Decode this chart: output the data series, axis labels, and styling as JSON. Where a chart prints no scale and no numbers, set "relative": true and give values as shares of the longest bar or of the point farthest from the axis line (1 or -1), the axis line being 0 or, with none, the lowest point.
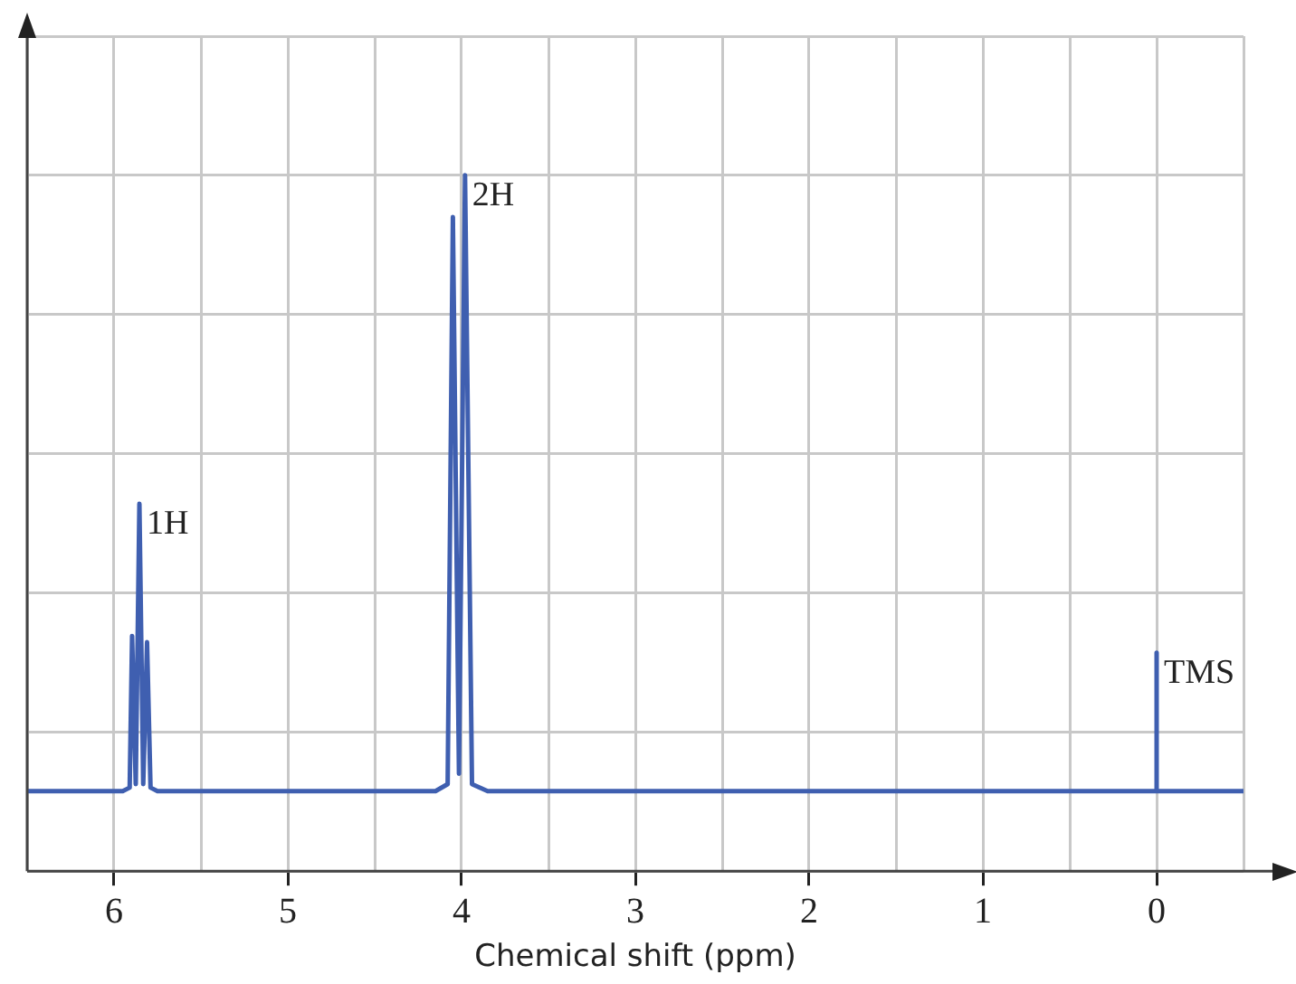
{
  "chart_data": {
    "type": "line",
    "xlabel": "Chemical shift (ppm)",
    "relative": true,
    "xlim": [
      6.5,
      -0.5
    ],
    "xticks": [
      {
        "value": 6.5,
        "label": null
      },
      6,
      {
        "value": 5.5,
        "label": null
      },
      5,
      {
        "value": 4.5,
        "label": null
      },
      4,
      {
        "value": 3.5,
        "label": null
      },
      3,
      {
        "value": 2.5,
        "label": null
      },
      2,
      {
        "value": 1.5,
        "label": null
      },
      1,
      {
        "value": 0.5,
        "label": null
      },
      0,
      {
        "value": -0.5,
        "label": null
      }
    ],
    "series": [
      {
        "color": "#3f5fb0",
        "x": [
          6.5,
          5.95,
          5.91,
          5.896,
          5.875,
          5.854,
          5.832,
          5.81,
          5.79,
          5.75,
          4.15,
          4.08,
          4.05,
          4.015,
          3.98,
          3.94,
          3.85,
          0.01,
          0,
          0,
          0,
          -0.5
        ],
        "values": [
          0.115,
          0.115,
          0.12,
          0.338,
          0.125,
          0.528,
          0.125,
          0.329,
          0.12,
          0.115,
          0.115,
          0.125,
          0.94,
          0.14,
          1,
          0.125,
          0.115,
          0.115,
          0.115,
          0.314,
          0.115,
          0.115
        ]
      }
    ],
    "annotations": [
      {
        "text": "1H",
        "x": 5.854,
        "y": 0.528
      },
      {
        "text": "2H",
        "x": 3.98,
        "y": 1
      },
      {
        "text": "TMS",
        "x": 0,
        "y": 0.314
      }
    ],
    "grid": true,
    "legend": false,
    "marker": "none",
    "line_style": "solid"
  }
}
